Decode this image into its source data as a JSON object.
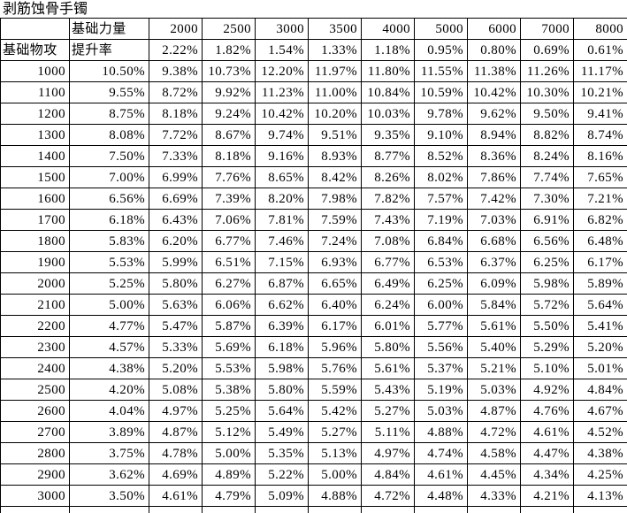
{
  "title": "剥筋蚀骨手镯",
  "colors": {
    "background": "#ffffff",
    "grid_line": "#000000",
    "text": "#000000"
  },
  "table": {
    "corner": "",
    "strength_label": "基础力量",
    "attack_label": "基础物攻",
    "rate_label": "提升率",
    "strength_columns": [
      "2000",
      "2500",
      "3000",
      "3500",
      "4000",
      "5000",
      "6000",
      "7000",
      "8000"
    ],
    "rate_row": [
      "2.22%",
      "1.82%",
      "1.54%",
      "1.33%",
      "1.18%",
      "0.95%",
      "0.80%",
      "0.69%",
      "0.61%"
    ],
    "rows": [
      {
        "attack": "1000",
        "base": "10.50%",
        "values": [
          "9.38%",
          "10.73%",
          "12.20%",
          "11.97%",
          "11.80%",
          "11.55%",
          "11.38%",
          "11.26%",
          "11.17%"
        ]
      },
      {
        "attack": "1100",
        "base": "9.55%",
        "values": [
          "8.72%",
          "9.92%",
          "11.23%",
          "11.00%",
          "10.84%",
          "10.59%",
          "10.42%",
          "10.30%",
          "10.21%"
        ]
      },
      {
        "attack": "1200",
        "base": "8.75%",
        "values": [
          "8.18%",
          "9.24%",
          "10.42%",
          "10.20%",
          "10.03%",
          "9.78%",
          "9.62%",
          "9.50%",
          "9.41%"
        ]
      },
      {
        "attack": "1300",
        "base": "8.08%",
        "values": [
          "7.72%",
          "8.67%",
          "9.74%",
          "9.51%",
          "9.35%",
          "9.10%",
          "8.94%",
          "8.82%",
          "8.74%"
        ]
      },
      {
        "attack": "1400",
        "base": "7.50%",
        "values": [
          "7.33%",
          "8.18%",
          "9.16%",
          "8.93%",
          "8.77%",
          "8.52%",
          "8.36%",
          "8.24%",
          "8.16%"
        ]
      },
      {
        "attack": "1500",
        "base": "7.00%",
        "values": [
          "6.99%",
          "7.76%",
          "8.65%",
          "8.42%",
          "8.26%",
          "8.02%",
          "7.86%",
          "7.74%",
          "7.65%"
        ]
      },
      {
        "attack": "1600",
        "base": "6.56%",
        "values": [
          "6.69%",
          "7.39%",
          "8.20%",
          "7.98%",
          "7.82%",
          "7.57%",
          "7.42%",
          "7.30%",
          "7.21%"
        ]
      },
      {
        "attack": "1700",
        "base": "6.18%",
        "values": [
          "6.43%",
          "7.06%",
          "7.81%",
          "7.59%",
          "7.43%",
          "7.19%",
          "7.03%",
          "6.91%",
          "6.82%"
        ]
      },
      {
        "attack": "1800",
        "base": "5.83%",
        "values": [
          "6.20%",
          "6.77%",
          "7.46%",
          "7.24%",
          "7.08%",
          "6.84%",
          "6.68%",
          "6.56%",
          "6.48%"
        ]
      },
      {
        "attack": "1900",
        "base": "5.53%",
        "values": [
          "5.99%",
          "6.51%",
          "7.15%",
          "6.93%",
          "6.77%",
          "6.53%",
          "6.37%",
          "6.25%",
          "6.17%"
        ]
      },
      {
        "attack": "2000",
        "base": "5.25%",
        "values": [
          "5.80%",
          "6.27%",
          "6.87%",
          "6.65%",
          "6.49%",
          "6.25%",
          "6.09%",
          "5.98%",
          "5.89%"
        ]
      },
      {
        "attack": "2100",
        "base": "5.00%",
        "values": [
          "5.63%",
          "6.06%",
          "6.62%",
          "6.40%",
          "6.24%",
          "6.00%",
          "5.84%",
          "5.72%",
          "5.64%"
        ]
      },
      {
        "attack": "2200",
        "base": "4.77%",
        "values": [
          "5.47%",
          "5.87%",
          "6.39%",
          "6.17%",
          "6.01%",
          "5.77%",
          "5.61%",
          "5.50%",
          "5.41%"
        ]
      },
      {
        "attack": "2300",
        "base": "4.57%",
        "values": [
          "5.33%",
          "5.69%",
          "6.18%",
          "5.96%",
          "5.80%",
          "5.56%",
          "5.40%",
          "5.29%",
          "5.20%"
        ]
      },
      {
        "attack": "2400",
        "base": "4.38%",
        "values": [
          "5.20%",
          "5.53%",
          "5.98%",
          "5.76%",
          "5.61%",
          "5.37%",
          "5.21%",
          "5.10%",
          "5.01%"
        ]
      },
      {
        "attack": "2500",
        "base": "4.20%",
        "values": [
          "5.08%",
          "5.38%",
          "5.80%",
          "5.59%",
          "5.43%",
          "5.19%",
          "5.03%",
          "4.92%",
          "4.84%"
        ]
      },
      {
        "attack": "2600",
        "base": "4.04%",
        "values": [
          "4.97%",
          "5.25%",
          "5.64%",
          "5.42%",
          "5.27%",
          "5.03%",
          "4.87%",
          "4.76%",
          "4.67%"
        ]
      },
      {
        "attack": "2700",
        "base": "3.89%",
        "values": [
          "4.87%",
          "5.12%",
          "5.49%",
          "5.27%",
          "5.11%",
          "4.88%",
          "4.72%",
          "4.61%",
          "4.52%"
        ]
      },
      {
        "attack": "2800",
        "base": "3.75%",
        "values": [
          "4.78%",
          "5.00%",
          "5.35%",
          "5.13%",
          "4.97%",
          "4.74%",
          "4.58%",
          "4.47%",
          "4.38%"
        ]
      },
      {
        "attack": "2900",
        "base": "3.62%",
        "values": [
          "4.69%",
          "4.89%",
          "5.22%",
          "5.00%",
          "4.84%",
          "4.61%",
          "4.45%",
          "4.34%",
          "4.25%"
        ]
      },
      {
        "attack": "3000",
        "base": "3.50%",
        "values": [
          "4.61%",
          "4.79%",
          "5.09%",
          "4.88%",
          "4.72%",
          "4.48%",
          "4.33%",
          "4.21%",
          "4.13%"
        ]
      }
    ]
  }
}
